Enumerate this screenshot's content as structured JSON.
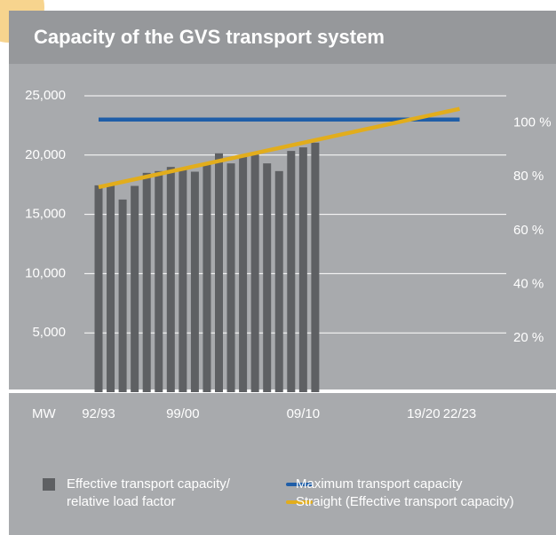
{
  "chart_data": {
    "type": "bar",
    "title": "Capacity of the GVS transport system",
    "ylabel": "MW",
    "categories": [
      "92/93",
      null,
      null,
      null,
      null,
      null,
      null,
      "99/00",
      null,
      null,
      null,
      null,
      null,
      null,
      null,
      null,
      null,
      "09/10",
      null,
      null,
      null,
      null,
      null,
      null,
      null,
      null,
      null,
      "19/20",
      null,
      null,
      "22/23"
    ],
    "series": [
      {
        "name": "Effective transport capacity/ relative load factor",
        "type": "bar",
        "color": "#5e6063",
        "values": [
          17450,
          17500,
          16250,
          17400,
          18500,
          18650,
          19000,
          18900,
          18600,
          19200,
          20150,
          19300,
          19900,
          20050,
          19300,
          18650,
          20350,
          20650,
          21050,
          null,
          null,
          null,
          null,
          null,
          null,
          null,
          null,
          null,
          null,
          null,
          null
        ]
      },
      {
        "name": "Maximum transport capacity",
        "type": "line",
        "color": "#1f5ea8",
        "values": [
          23000,
          23000,
          23000,
          23000,
          23000,
          23000,
          23000,
          23000,
          23000,
          23000,
          23000,
          23000,
          23000,
          23000,
          23000,
          23000,
          23000,
          23000,
          23000,
          23000,
          23000,
          23000,
          23000,
          23000,
          23000,
          23000,
          23000,
          23000,
          23000,
          23000,
          23000
        ]
      },
      {
        "name": "Straight (Effective transport capacity)",
        "type": "line",
        "color": "#e2ad1c",
        "values": [
          17300,
          17520,
          17740,
          17960,
          18180,
          18400,
          18620,
          18840,
          19060,
          19280,
          19500,
          19720,
          19940,
          20160,
          20380,
          20600,
          20820,
          21040,
          21260,
          21480,
          21700,
          21920,
          22140,
          22360,
          22580,
          22800,
          23020,
          23240,
          23460,
          23680,
          23900
        ]
      }
    ],
    "ylim": [
      0,
      25000
    ],
    "yticks": [
      {
        "value": 5000,
        "label": "5,000"
      },
      {
        "value": 10000,
        "label": "10,000"
      },
      {
        "value": 15000,
        "label": "15,000"
      },
      {
        "value": 20000,
        "label": "20,000"
      },
      {
        "value": 25000,
        "label": "25,000"
      }
    ],
    "y2lim": [
      0,
      110
    ],
    "y2ticks": [
      {
        "value": 20,
        "label": "20 %"
      },
      {
        "value": 40,
        "label": "40 %"
      },
      {
        "value": 60,
        "label": "60 %"
      },
      {
        "value": 80,
        "label": "80 %"
      },
      {
        "value": 100,
        "label": "100 %"
      }
    ],
    "grid": true
  }
}
